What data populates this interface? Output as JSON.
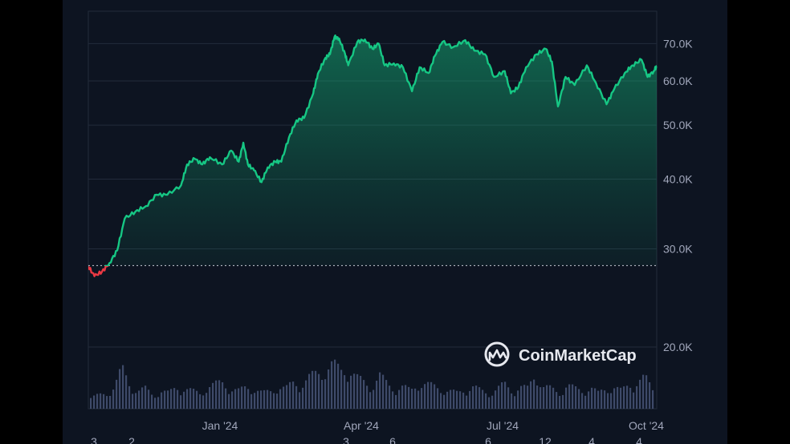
{
  "chart_data": {
    "type": "area",
    "title": "",
    "xlabel": "",
    "ylabel": "",
    "y_scale": "log",
    "ylim": [
      16000,
      76000
    ],
    "grid": true,
    "legend": "none",
    "x_ticks": [
      "Jan '24",
      "Apr '24",
      "Jul '24",
      "Oct '24"
    ],
    "y_ticks": [
      {
        "value": 20000,
        "label": "20.0K"
      },
      {
        "value": 30000,
        "label": "30.0K"
      },
      {
        "value": 40000,
        "label": "40.0K"
      },
      {
        "value": 50000,
        "label": "50.0K"
      },
      {
        "value": 60000,
        "label": "60.0K"
      },
      {
        "value": 70000,
        "label": "70.0K"
      }
    ],
    "reference_line": 28000,
    "x_start": "2023-10-01",
    "x_end": "2024-10-09",
    "bottom_partial_labels": [
      "3",
      "2",
      "3",
      "6",
      "6",
      "12",
      "4",
      "4"
    ],
    "series": [
      {
        "x": [
          "2023-10-01",
          "2023-10-05",
          "2023-10-10",
          "2023-10-15",
          "2023-10-20",
          "2023-10-25",
          "2023-11-01",
          "2023-11-08",
          "2023-11-15",
          "2023-11-22",
          "2023-12-01",
          "2023-12-05",
          "2023-12-10",
          "2023-12-15",
          "2023-12-20",
          "2023-12-28",
          "2024-01-03",
          "2024-01-08",
          "2024-01-11",
          "2024-01-14",
          "2024-01-18",
          "2024-01-23",
          "2024-01-27",
          "2024-02-01",
          "2024-02-05",
          "2024-02-10",
          "2024-02-15",
          "2024-02-20",
          "2024-02-26",
          "2024-02-29",
          "2024-03-05",
          "2024-03-08",
          "2024-03-11",
          "2024-03-14",
          "2024-03-18",
          "2024-03-20",
          "2024-03-26",
          "2024-03-31",
          "2024-04-05",
          "2024-04-09",
          "2024-04-13",
          "2024-04-19",
          "2024-04-25",
          "2024-05-01",
          "2024-05-06",
          "2024-05-12",
          "2024-05-16",
          "2024-05-21",
          "2024-05-28",
          "2024-06-05",
          "2024-06-11",
          "2024-06-18",
          "2024-06-24",
          "2024-07-01",
          "2024-07-05",
          "2024-07-10",
          "2024-07-15",
          "2024-07-22",
          "2024-07-28",
          "2024-08-01",
          "2024-08-05",
          "2024-08-10",
          "2024-08-16",
          "2024-08-24",
          "2024-08-30",
          "2024-09-06",
          "2024-09-11",
          "2024-09-18",
          "2024-09-23",
          "2024-09-29",
          "2024-10-03",
          "2024-10-07",
          "2024-10-09"
        ],
        "values": [
          27900,
          26800,
          27300,
          28300,
          29800,
          34000,
          35000,
          35800,
          37500,
          37500,
          39000,
          42500,
          43500,
          42500,
          43800,
          42500,
          45000,
          43000,
          46500,
          42500,
          41500,
          39500,
          42000,
          43000,
          43000,
          47500,
          51000,
          51500,
          57000,
          61800,
          66000,
          67000,
          72000,
          71500,
          67000,
          64000,
          70500,
          71200,
          68500,
          70000,
          64000,
          64500,
          63500,
          57500,
          63500,
          62000,
          66500,
          70500,
          69000,
          71000,
          68000,
          67000,
          61000,
          62500,
          57000,
          58500,
          63500,
          67000,
          68500,
          65000,
          54000,
          61000,
          59000,
          64000,
          59500,
          54500,
          58000,
          62000,
          64000,
          65500,
          61000,
          62500,
          63800
        ]
      }
    ],
    "volume_relative": [
      0.25,
      0.3,
      0.35,
      0.5,
      0.9,
      0.55,
      0.4,
      0.45,
      0.3,
      0.4,
      0.35,
      0.5,
      0.45,
      0.4,
      0.35,
      0.5,
      0.55,
      0.6,
      0.45,
      0.4,
      0.5,
      0.45,
      0.35,
      0.4,
      0.5,
      0.45,
      0.6,
      0.55,
      0.7,
      0.8,
      0.9,
      1.0,
      0.85,
      0.95,
      0.7,
      0.6,
      0.5,
      0.75,
      0.55,
      0.45,
      0.5,
      0.4,
      0.6,
      0.55,
      0.5,
      0.45,
      0.4,
      0.35,
      0.45,
      0.5,
      0.4,
      0.35,
      0.45,
      0.55,
      0.4,
      0.5,
      0.45,
      0.8,
      0.5,
      0.45,
      0.35,
      0.55,
      0.45,
      0.4,
      0.5,
      0.35,
      0.45,
      0.5,
      0.4,
      0.55,
      0.6,
      0.7,
      0.45
    ],
    "colors": {
      "background": "#0d1421",
      "up": "#16c784",
      "down": "#ea3943",
      "grid": "#222b3b",
      "axis_text": "#a1a7bb",
      "volume": "#3e4a69",
      "border": "#222b3b"
    },
    "watermark": {
      "text": "CoinMarketCap",
      "icon": "coinmarketcap-logo-icon"
    }
  }
}
